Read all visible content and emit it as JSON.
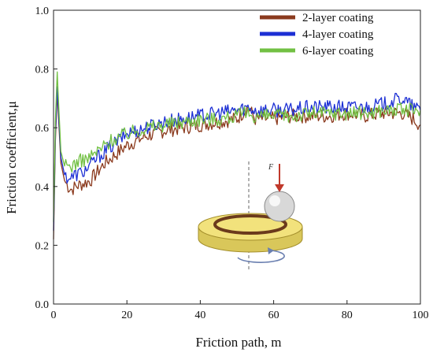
{
  "chart_data": {
    "type": "line",
    "xlabel": "Friction path, m",
    "ylabel": "Friction coefficient,μ",
    "xlim": [
      0,
      100
    ],
    "ylim": [
      0.0,
      1.0
    ],
    "x_ticks": [
      "0",
      "20",
      "40",
      "60",
      "80",
      "100"
    ],
    "y_ticks": [
      "0.0",
      "0.2",
      "0.4",
      "0.6",
      "0.8",
      "1.0"
    ],
    "legend_position": "top-right",
    "grid": false,
    "x": [
      0,
      0.5,
      1,
      1.5,
      2,
      3,
      4,
      5,
      6,
      8,
      10,
      12,
      14,
      16,
      18,
      20,
      25,
      30,
      35,
      40,
      45,
      50,
      53,
      55,
      60,
      65,
      70,
      75,
      80,
      85,
      90,
      95,
      98,
      100
    ],
    "series": [
      {
        "name": "2-layer coating",
        "color": "#8b3a1e",
        "values": [
          0.22,
          0.55,
          0.72,
          0.6,
          0.48,
          0.42,
          0.4,
          0.39,
          0.4,
          0.41,
          0.42,
          0.45,
          0.48,
          0.5,
          0.52,
          0.54,
          0.57,
          0.59,
          0.6,
          0.61,
          0.62,
          0.63,
          0.67,
          0.63,
          0.63,
          0.64,
          0.64,
          0.64,
          0.65,
          0.64,
          0.65,
          0.65,
          0.63,
          0.61
        ]
      },
      {
        "name": "4-layer coating",
        "color": "#1c2fd4",
        "values": [
          0.25,
          0.58,
          0.74,
          0.62,
          0.5,
          0.44,
          0.43,
          0.43,
          0.44,
          0.45,
          0.47,
          0.5,
          0.52,
          0.54,
          0.56,
          0.58,
          0.6,
          0.62,
          0.63,
          0.64,
          0.65,
          0.66,
          0.67,
          0.66,
          0.66,
          0.66,
          0.67,
          0.67,
          0.67,
          0.67,
          0.68,
          0.7,
          0.67,
          0.66
        ]
      },
      {
        "name": "6-layer coating",
        "color": "#72c043",
        "values": [
          0.28,
          0.62,
          0.79,
          0.65,
          0.52,
          0.47,
          0.47,
          0.47,
          0.48,
          0.49,
          0.5,
          0.52,
          0.54,
          0.56,
          0.57,
          0.58,
          0.6,
          0.61,
          0.62,
          0.63,
          0.63,
          0.64,
          0.65,
          0.64,
          0.64,
          0.64,
          0.65,
          0.65,
          0.65,
          0.65,
          0.66,
          0.66,
          0.66,
          0.66
        ]
      }
    ],
    "inset": {
      "label": "F",
      "arrow_color": "#c0392b",
      "disc_color": "#f2e27c"
    }
  }
}
